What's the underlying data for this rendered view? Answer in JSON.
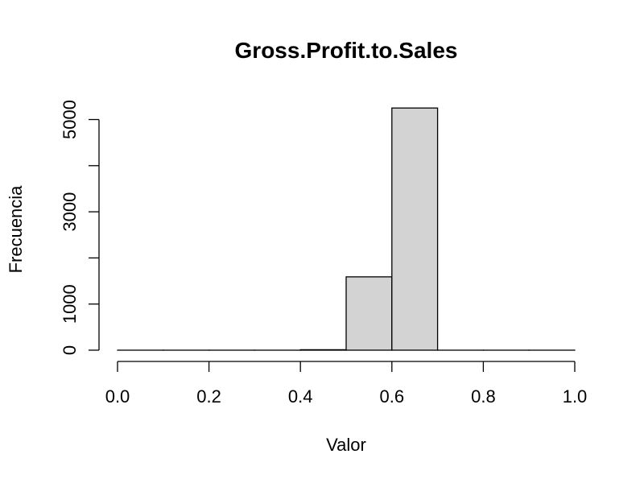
{
  "chart_data": {
    "type": "bar",
    "title": "Gross.Profit.to.Sales",
    "xlabel": "Valor",
    "ylabel": "Frecuencia",
    "xlim": [
      0,
      1
    ],
    "ylim": [
      0,
      5250
    ],
    "x_ticks": [
      0.0,
      0.2,
      0.4,
      0.6,
      0.8,
      1.0
    ],
    "x_tick_labels": [
      "0.0",
      "0.2",
      "0.4",
      "0.6",
      "0.8",
      "1.0"
    ],
    "y_ticks": [
      0,
      1000,
      2000,
      3000,
      4000,
      5000
    ],
    "y_tick_labels": [
      "0",
      "1000",
      "",
      "3000",
      "",
      "5000"
    ],
    "bar_color": "#d3d3d3",
    "bins": [
      {
        "start": 0.0,
        "end": 0.1,
        "count": 0
      },
      {
        "start": 0.1,
        "end": 0.2,
        "count": 0
      },
      {
        "start": 0.2,
        "end": 0.3,
        "count": 0
      },
      {
        "start": 0.3,
        "end": 0.4,
        "count": 0
      },
      {
        "start": 0.4,
        "end": 0.5,
        "count": 10
      },
      {
        "start": 0.5,
        "end": 0.6,
        "count": 1590
      },
      {
        "start": 0.6,
        "end": 0.7,
        "count": 5250
      },
      {
        "start": 0.7,
        "end": 0.8,
        "count": 0
      },
      {
        "start": 0.8,
        "end": 0.9,
        "count": 0
      },
      {
        "start": 0.9,
        "end": 1.0,
        "count": 0
      }
    ]
  }
}
